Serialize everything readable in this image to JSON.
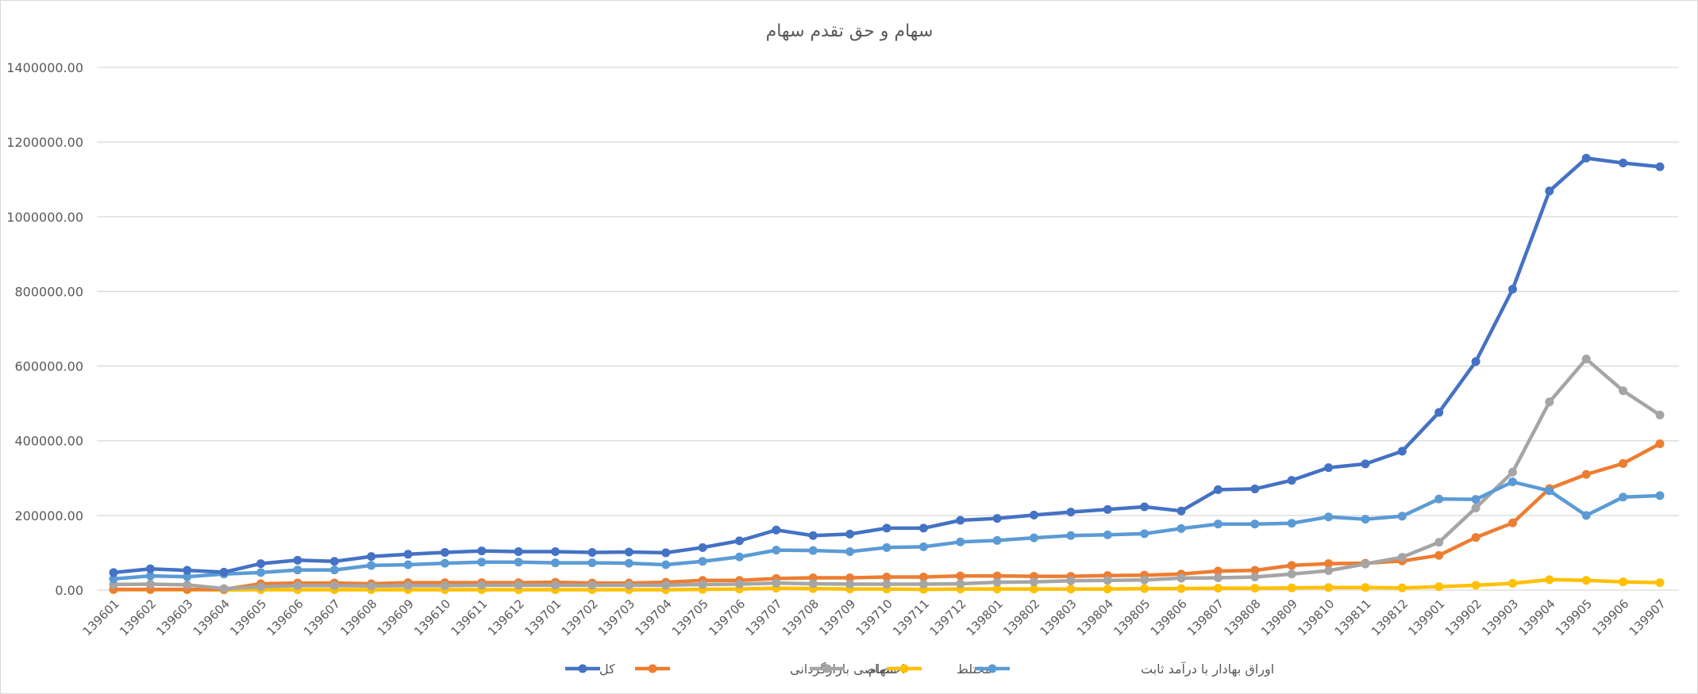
{
  "chart_data": {
    "type": "line",
    "title": "سهام و حق تقدم سهام",
    "xlabel": "",
    "ylabel": "",
    "ylim": [
      0,
      1400000
    ],
    "ytick_step": 200000,
    "ytick_labels": [
      "0.00",
      "200000.00",
      "400000.00",
      "600000.00",
      "800000.00",
      "1000000.00",
      "1200000.00",
      "1400000.00"
    ],
    "grid": true,
    "legend_position": "bottom",
    "categories": [
      "139601",
      "139602",
      "139603",
      "139604",
      "139605",
      "139606",
      "139607",
      "139608",
      "139609",
      "139610",
      "139611",
      "139612",
      "139701",
      "139702",
      "139703",
      "139704",
      "139705",
      "139706",
      "139707",
      "139708",
      "139709",
      "139710",
      "139711",
      "139712",
      "139801",
      "139802",
      "139803",
      "139804",
      "139805",
      "139806",
      "139807",
      "139808",
      "139809",
      "139810",
      "139811",
      "139812",
      "139901",
      "139902",
      "139903",
      "139904",
      "139905",
      "139906",
      "139907"
    ],
    "series": [
      {
        "name": "کل",
        "color": "#4472C4",
        "values": [
          47000,
          57000,
          53000,
          48000,
          71000,
          80000,
          77000,
          90000,
          96000,
          101000,
          105000,
          103000,
          103000,
          101000,
          102000,
          100000,
          114000,
          132000,
          161000,
          146000,
          150000,
          166000,
          166000,
          187000,
          192000,
          201000,
          209000,
          216000,
          223000,
          212000,
          269000,
          271000,
          294000,
          328000,
          338000,
          372000,
          476000,
          612000,
          806000,
          1069000,
          1157000,
          1144000,
          1134000
        ]
      },
      {
        "name": "اختصاصی بازارگردانی",
        "color": "#ED7D31",
        "values": [
          2000,
          2000,
          2000,
          2000,
          17000,
          19000,
          19000,
          17000,
          20000,
          20000,
          20000,
          20000,
          21000,
          19000,
          19000,
          21000,
          26000,
          26000,
          31000,
          33000,
          33000,
          35000,
          35000,
          38000,
          38000,
          37000,
          37000,
          39000,
          40000,
          43000,
          51000,
          53000,
          66000,
          71000,
          72000,
          78000,
          93000,
          141000,
          180000,
          272000,
          310000,
          339000,
          392000
        ]
      },
      {
        "name": "سهام",
        "color": "#A5A5A5",
        "values": [
          15000,
          16000,
          14000,
          4000,
          9000,
          12000,
          12000,
          11000,
          12000,
          12000,
          13000,
          13000,
          13000,
          13000,
          13000,
          13000,
          15000,
          16000,
          19000,
          17000,
          16000,
          16000,
          16000,
          17000,
          21000,
          22000,
          25000,
          26000,
          27000,
          32000,
          33000,
          35000,
          43000,
          52000,
          70000,
          88000,
          128000,
          220000,
          316000,
          504000,
          619000,
          534000,
          469000
        ]
      },
      {
        "name": "مختلط",
        "color": "#FFC000",
        "values": [
          1000,
          1000,
          1000,
          500,
          1000,
          1000,
          1000,
          1000,
          1000,
          1000,
          1000,
          1000,
          1000,
          1000,
          1000,
          1000,
          2000,
          3000,
          5000,
          4000,
          3000,
          3000,
          2000,
          3000,
          3000,
          3000,
          3000,
          3000,
          4000,
          4000,
          5000,
          5000,
          6000,
          7000,
          7000,
          6000,
          9000,
          13000,
          18000,
          28000,
          26000,
          22000,
          20000
        ]
      },
      {
        "name": "اوراق بهادار با درآمد ثابت",
        "color": "#5B9BD5",
        "values": [
          30000,
          38000,
          36000,
          43000,
          47000,
          54000,
          54000,
          66000,
          68000,
          72000,
          75000,
          75000,
          73000,
          73000,
          72000,
          68000,
          77000,
          89000,
          107000,
          106000,
          103000,
          114000,
          116000,
          129000,
          133000,
          140000,
          146000,
          148000,
          151000,
          165000,
          177000,
          177000,
          179000,
          196000,
          190000,
          198000,
          244000,
          243000,
          290000,
          266000,
          200000,
          249000,
          253000
        ]
      }
    ]
  }
}
